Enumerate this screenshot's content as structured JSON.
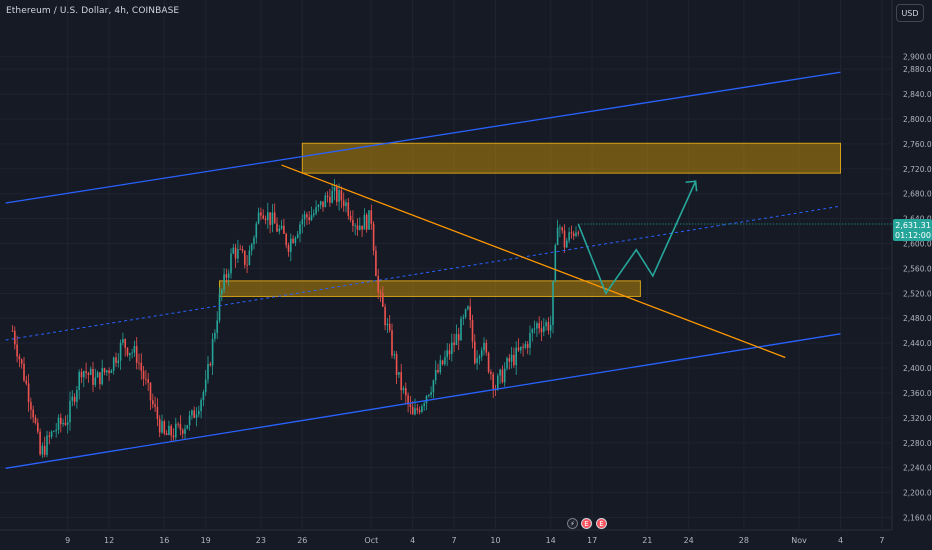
{
  "header": {
    "title": "Ethereum / U.S. Dollar, 4h, COINBASE",
    "currency": "USD"
  },
  "price_badge": {
    "price": "2,631.31",
    "countdown": "01:12:00",
    "color": "#26a69a"
  },
  "events": {
    "flash": "⚡",
    "earnings_1": "E",
    "earnings_2": "E"
  },
  "colors": {
    "background": "#161a25",
    "up_candle": "#26a69a",
    "down_candle": "#ef5350",
    "channel": "#2962ff",
    "trendline": "#ff9800",
    "zone_fill": "#b8860b",
    "zone_border": "#d4a017",
    "projection": "#26a69a",
    "grid": "#1f2330"
  },
  "chart_data": {
    "type": "candlestick",
    "symbol": "Ethereum / U.S. Dollar",
    "interval": "4h",
    "exchange": "COINBASE",
    "y_axis": {
      "range": [
        2140,
        2960
      ],
      "ticks": [
        "2,900.00",
        "2,880.00",
        "2,840.00",
        "2,800.00",
        "2,760.00",
        "2,720.00",
        "2,680.00",
        "2,640.00",
        "2,600.00",
        "2,560.00",
        "2,520.00",
        "2,480.00",
        "2,440.00",
        "2,400.00",
        "2,360.00",
        "2,320.00",
        "2,280.00",
        "2,240.00",
        "2,200.00",
        "2,160.00"
      ],
      "tick_values": [
        2900,
        2880,
        2840,
        2800,
        2760,
        2720,
        2680,
        2640,
        2600,
        2560,
        2520,
        2480,
        2440,
        2400,
        2360,
        2320,
        2280,
        2240,
        2200,
        2160
      ]
    },
    "x_axis": {
      "ticks": [
        "9",
        "12",
        "16",
        "19",
        "23",
        "26",
        "Oct",
        "4",
        "7",
        "10",
        "14",
        "17",
        "21",
        "24",
        "28",
        "Nov",
        "4",
        "7"
      ],
      "tick_days": [
        9,
        12,
        16,
        19,
        23,
        26,
        31,
        34,
        37,
        40,
        44,
        47,
        51,
        54,
        58,
        62,
        65,
        68
      ]
    },
    "price_path": [
      [
        5,
        2460
      ],
      [
        6.5,
        2330
      ],
      [
        7,
        2260
      ],
      [
        8,
        2300
      ],
      [
        9,
        2320
      ],
      [
        10,
        2400
      ],
      [
        11,
        2380
      ],
      [
        12,
        2400
      ],
      [
        13,
        2440
      ],
      [
        14,
        2420
      ],
      [
        15,
        2350
      ],
      [
        16,
        2290
      ],
      [
        17,
        2300
      ],
      [
        18,
        2320
      ],
      [
        19,
        2370
      ],
      [
        20,
        2510
      ],
      [
        21,
        2590
      ],
      [
        22,
        2570
      ],
      [
        23,
        2660
      ],
      [
        24,
        2630
      ],
      [
        25,
        2600
      ],
      [
        26,
        2640
      ],
      [
        27,
        2650
      ],
      [
        28,
        2680
      ],
      [
        29,
        2670
      ],
      [
        30,
        2630
      ],
      [
        31,
        2640
      ],
      [
        31.5,
        2520
      ],
      [
        32,
        2480
      ],
      [
        33,
        2380
      ],
      [
        34,
        2320
      ],
      [
        35,
        2360
      ],
      [
        36,
        2400
      ],
      [
        37,
        2440
      ],
      [
        38,
        2490
      ],
      [
        38.5,
        2420
      ],
      [
        39,
        2440
      ],
      [
        40,
        2370
      ],
      [
        41,
        2410
      ],
      [
        42,
        2430
      ],
      [
        43,
        2470
      ],
      [
        44,
        2470
      ],
      [
        44.5,
        2640
      ],
      [
        45,
        2600
      ],
      [
        46,
        2630
      ]
    ],
    "annotations": {
      "channel_upper": [
        [
          4.5,
          2665
        ],
        [
          65,
          2875
        ]
      ],
      "channel_lower": [
        [
          4.5,
          2239
        ],
        [
          65,
          2455
        ]
      ],
      "channel_mid": [
        [
          4.5,
          2445
        ],
        [
          65,
          2660
        ]
      ],
      "trendline_resistance": [
        [
          24.5,
          2726
        ],
        [
          61,
          2417
        ]
      ],
      "supply_zone": {
        "x": [
          26,
          65
        ],
        "y": [
          2713,
          2761
        ]
      },
      "support_zone": {
        "x": [
          20,
          50.5
        ],
        "y": [
          2515,
          2540
        ]
      },
      "projection": [
        [
          46,
          2631
        ],
        [
          48,
          2520
        ],
        [
          50.2,
          2590
        ],
        [
          51.4,
          2548
        ],
        [
          54.5,
          2700
        ]
      ]
    },
    "last_price": 2631.31
  }
}
